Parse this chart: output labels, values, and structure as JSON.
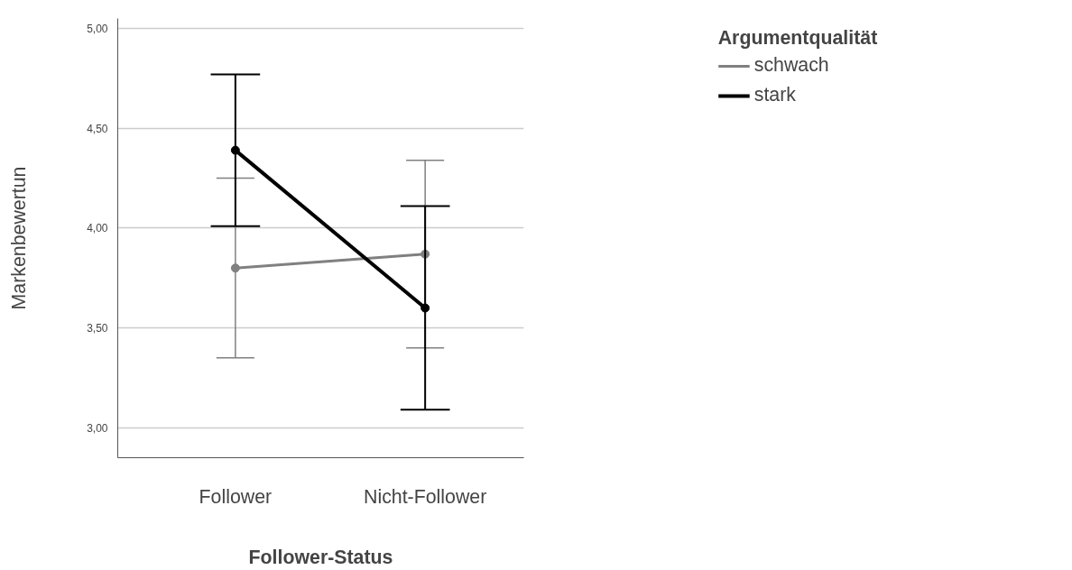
{
  "chart_data": {
    "type": "line",
    "xlabel": "Follower-Status",
    "ylabel": "Markenbewertun",
    "legend_title": "Argumentqualität",
    "categories": [
      "Follower",
      "Nicht-Follower"
    ],
    "series": [
      {
        "name": "schwach",
        "color": "#808080",
        "values": [
          3.8,
          3.87
        ],
        "errors": [
          [
            3.35,
            4.25
          ],
          [
            3.4,
            4.34
          ]
        ]
      },
      {
        "name": "stark",
        "color": "#000000",
        "values": [
          4.39,
          3.6
        ],
        "errors": [
          [
            4.01,
            4.77
          ],
          [
            3.09,
            4.11
          ]
        ]
      }
    ],
    "ylim": [
      2.85,
      5.05
    ],
    "yticks": [
      {
        "value": 3,
        "label": "3,00"
      },
      {
        "value": 3.5,
        "label": "3,50"
      },
      {
        "value": 4,
        "label": "4,00"
      },
      {
        "value": 4.5,
        "label": "4,50"
      },
      {
        "value": 5,
        "label": "5,00"
      }
    ],
    "grid": "y",
    "legend": "top right",
    "marker": "circle",
    "line_style": "solid"
  }
}
